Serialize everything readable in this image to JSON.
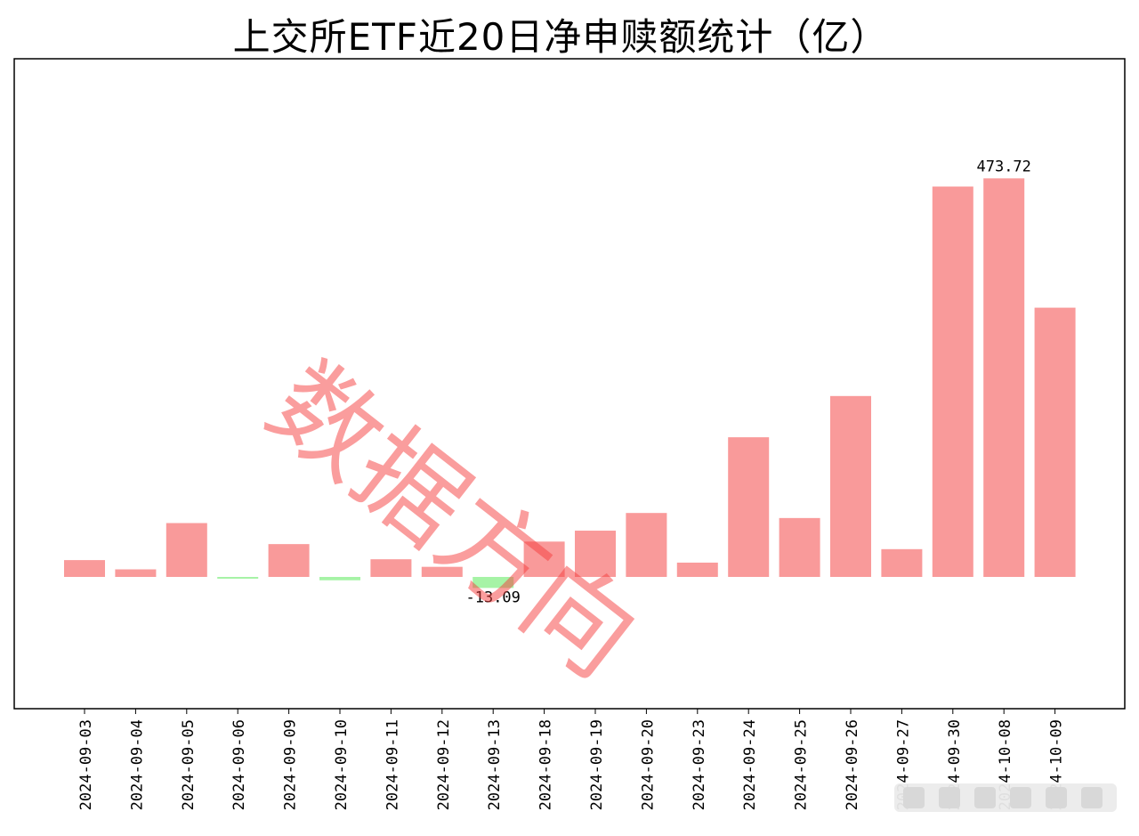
{
  "chart_data": {
    "type": "bar",
    "title": "上交所ETF近20日净申赎额统计（亿）",
    "categories": [
      "2024-09-03",
      "2024-09-04",
      "2024-09-05",
      "2024-09-06",
      "2024-09-09",
      "2024-09-10",
      "2024-09-11",
      "2024-09-12",
      "2024-09-13",
      "2024-09-18",
      "2024-09-19",
      "2024-09-20",
      "2024-09-23",
      "2024-09-24",
      "2024-09-25",
      "2024-09-26",
      "2024-09-27",
      "2024-09-30",
      "2024-10-08",
      "2024-10-09"
    ],
    "values": [
      20,
      9,
      64,
      -2,
      39,
      -4,
      21,
      12,
      -13.09,
      42,
      55,
      76,
      17,
      166,
      70,
      215,
      33,
      464,
      473.72,
      320
    ],
    "annotations": [
      {
        "category": "2024-09-13",
        "text": "-13.09"
      },
      {
        "category": "2024-10-08",
        "text": "473.72"
      }
    ],
    "ylim": [
      -160,
      620
    ],
    "colors": {
      "positive": "#f99a9a",
      "negative": "#a6f3a6"
    },
    "grid": false,
    "yticks_shown": false
  },
  "watermark": "数据方向"
}
